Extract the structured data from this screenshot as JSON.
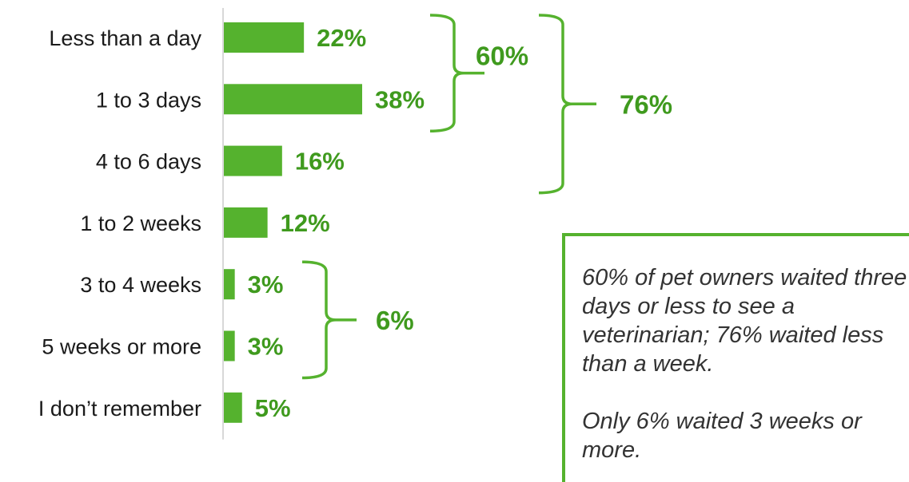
{
  "colors": {
    "bar": "#55b22e",
    "value_text": "#3f9a1e",
    "axis": "#cccccc",
    "category_text": "#1a1a1a"
  },
  "chart_data": {
    "type": "bar",
    "orientation": "horizontal",
    "categories": [
      "Less than a day",
      "1 to 3 days",
      "4 to 6 days",
      "1 to 2 weeks",
      "3 to 4 weeks",
      "5 weeks or more",
      "I don’t remember"
    ],
    "values": [
      22,
      38,
      16,
      12,
      3,
      3,
      5
    ],
    "value_labels": [
      "22%",
      "38%",
      "16%",
      "12%",
      "3%",
      "3%",
      "5%"
    ],
    "unit": "%",
    "xlim": [
      0,
      40
    ],
    "grid": false,
    "annotations": [
      {
        "type": "brace",
        "from": "Less than a day",
        "to": "1 to 3 days",
        "label": "60%"
      },
      {
        "type": "brace",
        "from": "Less than a day",
        "to": "4 to 6 days",
        "label": "76%"
      },
      {
        "type": "brace",
        "from": "3 to 4 weeks",
        "to": "5 weeks or more",
        "label": "6%"
      }
    ]
  },
  "note": {
    "paragraphs": [
      "60% of pet owners waited three days or less to see a veterinarian; 76% waited less than a week.",
      "Only 6% waited 3 weeks or more."
    ]
  }
}
